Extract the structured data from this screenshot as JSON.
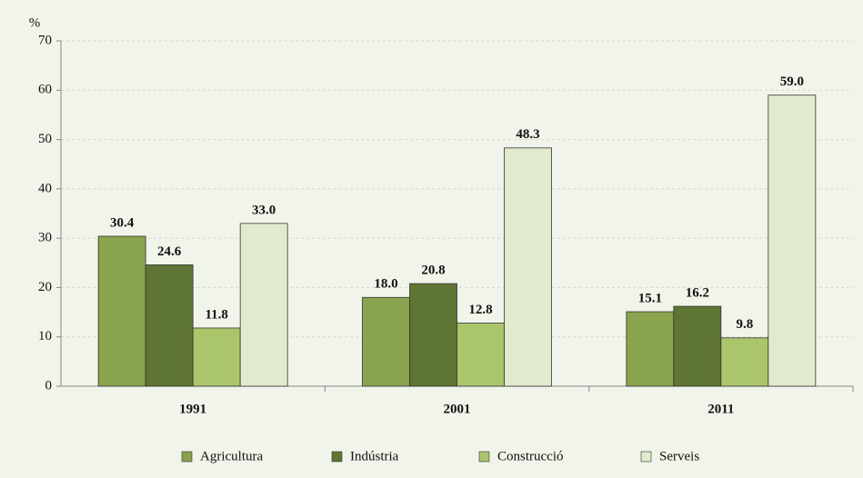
{
  "chart_data": {
    "type": "bar",
    "y_label": "%",
    "categories": [
      "1991",
      "2001",
      "2011"
    ],
    "series": [
      {
        "name": "Agricultura",
        "color": "#8aa34e",
        "values": [
          30.4,
          18.0,
          15.1
        ],
        "value_labels": [
          "30.4",
          "18.0",
          "15.1"
        ]
      },
      {
        "name": "Indústria",
        "color": "#5f7533",
        "values": [
          24.6,
          20.8,
          16.2
        ],
        "value_labels": [
          "24.6",
          "20.8",
          "16.2"
        ]
      },
      {
        "name": "Construcció",
        "color": "#abc56b",
        "values": [
          11.8,
          12.8,
          9.8
        ],
        "value_labels": [
          "11.8",
          "12.8",
          "9.8"
        ]
      },
      {
        "name": "Serveis",
        "color": "#e1eacd",
        "values": [
          33.0,
          48.3,
          59.0
        ],
        "value_labels": [
          "33.0",
          "48.3",
          "59.0"
        ]
      }
    ],
    "ylim": [
      0,
      70
    ],
    "yticks": [
      0,
      10,
      20,
      30,
      40,
      50,
      60,
      70
    ],
    "grid": true,
    "legend": "bottom"
  }
}
